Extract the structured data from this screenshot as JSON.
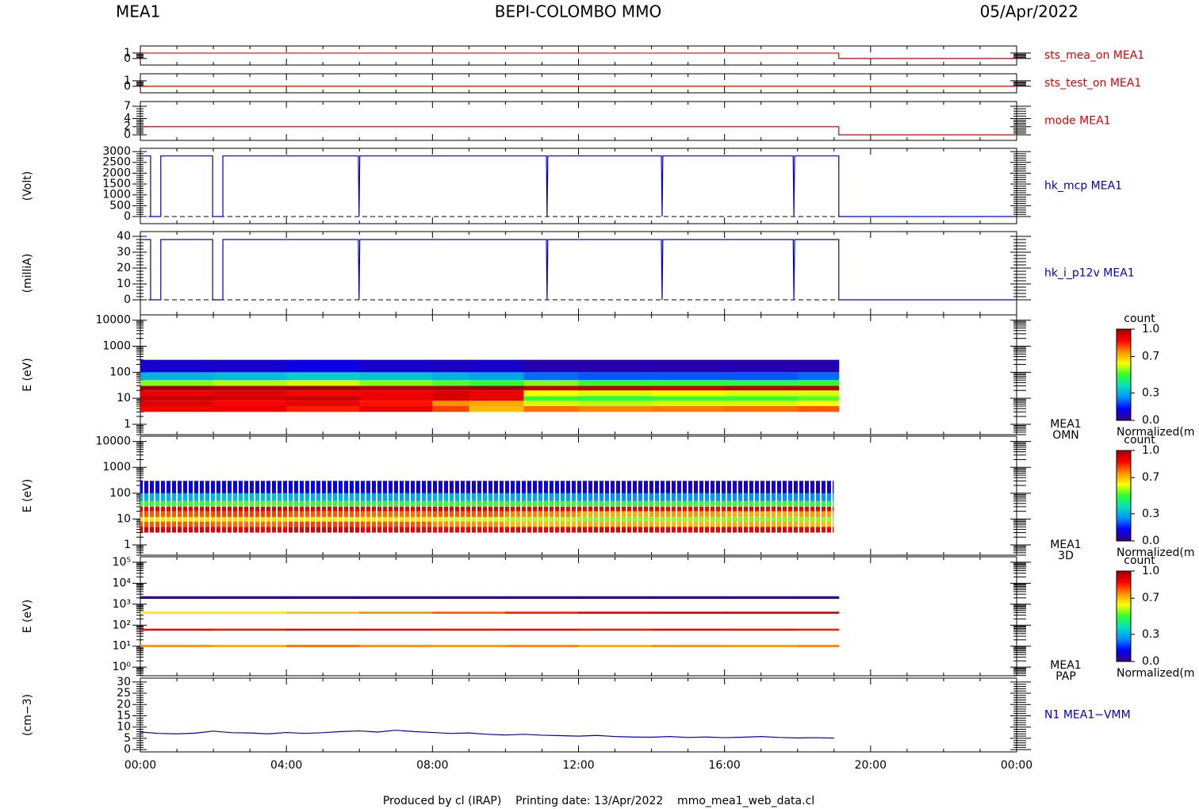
{
  "header": {
    "left": "MEA1",
    "title": "BEPI-COLOMBO MMO",
    "date": "05/Apr/2022"
  },
  "footer": "Produced by cl (IRAP)    Printing date: 13/Apr/2022    mmo_mea1_web_data.cl",
  "chart_data": [
    {
      "type": "line",
      "xlim": [
        0,
        24
      ],
      "ylim": [
        -1.2,
        2.3
      ],
      "yticks": [
        0,
        1
      ],
      "series": [
        {
          "name": "sts_mea_on MEA1",
          "color": "#e00000",
          "x": [
            0,
            19.13,
            19.13,
            24
          ],
          "values": [
            1,
            1,
            0,
            0
          ]
        }
      ]
    },
    {
      "type": "line",
      "xlim": [
        0,
        24
      ],
      "ylim": [
        -1.2,
        2.3
      ],
      "yticks": [
        0,
        1
      ],
      "series": [
        {
          "name": "sts_test_on MEA1",
          "color": "#e00000",
          "x": [
            0,
            24
          ],
          "values": [
            0,
            0
          ]
        }
      ]
    },
    {
      "type": "line",
      "xlim": [
        0,
        24
      ],
      "ylim": [
        -1.36,
        8.17
      ],
      "yticks": [
        0,
        2,
        4,
        7
      ],
      "series": [
        {
          "name": "mode MEA1",
          "color": "#e00000",
          "x": [
            0,
            19.13,
            19.13,
            24
          ],
          "values": [
            2,
            2,
            0,
            0
          ]
        }
      ]
    },
    {
      "type": "line",
      "ylabel": "(Volt)",
      "xlim": [
        0,
        24
      ],
      "ylim": [
        -330,
        3150
      ],
      "yticks": [
        0,
        500,
        1000,
        1500,
        2000,
        2500,
        3000
      ],
      "baseline": 0,
      "series": [
        {
          "name": "hk_mcp MEA1",
          "color": "#0000c8",
          "x": [
            0,
            0.28,
            0.28,
            0.56,
            0.56,
            1.98,
            1.98,
            2.26,
            2.26,
            5.97,
            5.99,
            6.01,
            11.12,
            11.14,
            11.16,
            14.27,
            14.29,
            14.31,
            17.88,
            17.9,
            17.92,
            19.13,
            19.13,
            24
          ],
          "values": [
            2800,
            2800,
            0,
            0,
            2800,
            2800,
            0,
            0,
            2800,
            2800,
            0,
            2800,
            2800,
            0,
            2800,
            2800,
            0,
            2800,
            2800,
            0,
            2800,
            2800,
            0,
            0
          ]
        }
      ]
    },
    {
      "type": "line",
      "ylabel": "(milliA)",
      "xlim": [
        0,
        24
      ],
      "ylim": [
        -9.5,
        43
      ],
      "yticks": [
        0,
        10,
        20,
        30,
        40
      ],
      "baseline": 0,
      "series": [
        {
          "name": "hk_i_p12v MEA1",
          "color": "#0000c8",
          "x": [
            0,
            0.28,
            0.28,
            0.56,
            0.56,
            1.98,
            1.98,
            2.26,
            2.26,
            5.97,
            5.99,
            6.01,
            11.12,
            11.14,
            11.16,
            14.27,
            14.29,
            14.31,
            17.88,
            17.9,
            17.92,
            19.13,
            19.13,
            24
          ],
          "values": [
            38,
            38,
            0,
            0,
            38,
            38,
            0,
            0,
            38,
            38,
            0,
            38,
            38,
            0,
            38,
            38,
            0,
            38,
            38,
            0,
            38,
            38,
            0,
            0
          ]
        }
      ]
    },
    {
      "type": "heatmap",
      "ylabel": "E (eV)",
      "instrument": "MEA1",
      "product": "OMN",
      "log_y": true,
      "xlim": [
        0,
        24
      ],
      "ylim": [
        0.4,
        16000
      ],
      "yticks": [
        1,
        10,
        100,
        1000,
        10000
      ],
      "x_edges": [
        0,
        2,
        4,
        6,
        8,
        9,
        10.5,
        12,
        14,
        16,
        18,
        19.13
      ],
      "y_edges": [
        3,
        5,
        8,
        12,
        20,
        30,
        50,
        100,
        300
      ],
      "z": [
        [
          0.88,
          0.9,
          0.85,
          0.9,
          0.82,
          0.7,
          0.78,
          0.76,
          0.77,
          0.78,
          0.8
        ],
        [
          0.92,
          0.88,
          0.9,
          0.86,
          0.75,
          0.72,
          0.6,
          0.58,
          0.6,
          0.6,
          0.62
        ],
        [
          0.95,
          0.93,
          0.95,
          0.9,
          0.92,
          0.9,
          0.5,
          0.48,
          0.5,
          0.5,
          0.52
        ],
        [
          0.9,
          0.92,
          0.88,
          0.9,
          0.93,
          0.9,
          0.62,
          0.6,
          0.62,
          0.6,
          0.6
        ],
        [
          1,
          0.98,
          1,
          0.97,
          0.98,
          1,
          0.95,
          0.96,
          0.95,
          0.96,
          0.96
        ],
        [
          0.55,
          0.58,
          0.6,
          0.55,
          0.52,
          0.5,
          0.55,
          0.5,
          0.5,
          0.48,
          0.5
        ],
        [
          0.3,
          0.32,
          0.35,
          0.33,
          0.3,
          0.28,
          0.22,
          0.2,
          0.2,
          0.2,
          0.22
        ],
        [
          0.08,
          0.08,
          0.1,
          0.08,
          0.07,
          0.08,
          0.05,
          0.05,
          0.05,
          0.05,
          0.05
        ]
      ],
      "colormap": [
        "#3c0078",
        "#0000ff",
        "#0090ff",
        "#00e0c0",
        "#30ff30",
        "#ffff00",
        "#ff9000",
        "#ff0000",
        "#a00000"
      ],
      "colorbar": {
        "title": "count",
        "subtitle": "Normalized(m",
        "lim": [
          0,
          1
        ],
        "ticks": [
          {
            "value": 0,
            "label": "0.0"
          },
          0.3,
          0.7,
          {
            "value": 1,
            "label": "1.0"
          }
        ]
      }
    },
    {
      "type": "heatmap",
      "ylabel": "E (eV)",
      "instrument": "MEA1",
      "product": "3D",
      "log_y": true,
      "striped": true,
      "xlim": [
        0,
        24
      ],
      "ylim": [
        0.4,
        16000
      ],
      "yticks": [
        1,
        10,
        100,
        1000,
        10000
      ],
      "x_edges": [
        0,
        2,
        4,
        6,
        8,
        10,
        12,
        14,
        16,
        18,
        18.98
      ],
      "y_edges": [
        3,
        5,
        8,
        12,
        20,
        30,
        50,
        100,
        300
      ],
      "z": [
        [
          0.92,
          0.9,
          0.93,
          0.9,
          0.88,
          0.9,
          0.92,
          0.9,
          0.91,
          0.9
        ],
        [
          0.8,
          0.78,
          0.82,
          0.8,
          0.75,
          0.7,
          0.72,
          0.7,
          0.72,
          0.7
        ],
        [
          0.65,
          0.66,
          0.64,
          0.65,
          0.6,
          0.58,
          0.55,
          0.56,
          0.55,
          0.56
        ],
        [
          0.8,
          0.82,
          0.8,
          0.78,
          0.8,
          0.76,
          0.72,
          0.74,
          0.72,
          0.74
        ],
        [
          0.9,
          0.92,
          0.9,
          0.9,
          0.92,
          0.9,
          0.9,
          0.88,
          0.9,
          0.9
        ],
        [
          0.5,
          0.52,
          0.5,
          0.48,
          0.5,
          0.5,
          0.48,
          0.5,
          0.5,
          0.48
        ],
        [
          0.3,
          0.32,
          0.3,
          0.28,
          0.3,
          0.28,
          0.25,
          0.26,
          0.25,
          0.25
        ],
        [
          0.1,
          0.1,
          0.12,
          0.1,
          0.08,
          0.1,
          0.08,
          0.08,
          0.08,
          0.08
        ]
      ],
      "colormap": [
        "#3c0078",
        "#0000ff",
        "#0090ff",
        "#00e0c0",
        "#30ff30",
        "#ffff00",
        "#ff9000",
        "#ff0000",
        "#a00000"
      ],
      "colorbar": {
        "title": "count",
        "subtitle": "Normalized(m",
        "lim": [
          0,
          1
        ],
        "ticks": [
          {
            "value": 0,
            "label": "0.0"
          },
          0.3,
          0.7,
          {
            "value": 1,
            "label": "1.0"
          }
        ]
      }
    },
    {
      "type": "heatmap",
      "ylabel": "E (eV)",
      "instrument": "MEA1",
      "product": "PAP",
      "log_y": true,
      "xlim": [
        0,
        24
      ],
      "ylim": [
        0.39,
        182000
      ],
      "yticks": [
        {
          "value": 1,
          "label": "10⁰"
        },
        {
          "value": 10,
          "label": "10¹"
        },
        {
          "value": 100,
          "label": "10²"
        },
        {
          "value": 1000,
          "label": "10³"
        },
        {
          "value": 10000,
          "label": "10⁴"
        },
        {
          "value": 100000,
          "label": "10⁵"
        }
      ],
      "x_edges": [
        0,
        2,
        4,
        6,
        8,
        10,
        12,
        14,
        16,
        18,
        19.13
      ],
      "y_edges": [
        9,
        11.5,
        55,
        68,
        350,
        440,
        1800,
        2400
      ],
      "z": [
        [
          0.75,
          0.72,
          0.78,
          0.75,
          0.74,
          0.76,
          0.72,
          0.75,
          0.74,
          0.76
        ],
        [
          null,
          null,
          null,
          null,
          null,
          null,
          null,
          null,
          null,
          null
        ],
        [
          0.88,
          0.86,
          0.9,
          0.88,
          0.87,
          0.88,
          0.86,
          0.88,
          0.87,
          0.85
        ],
        [
          null,
          null,
          null,
          null,
          null,
          null,
          null,
          null,
          null,
          null
        ],
        [
          0.65,
          0.65,
          0.7,
          0.75,
          0.8,
          0.85,
          0.9,
          0.92,
          0.93,
          0.93
        ],
        [
          null,
          null,
          null,
          null,
          null,
          null,
          null,
          null,
          null,
          null
        ],
        [
          0.02,
          0.02,
          0.02,
          0.02,
          0.02,
          0.02,
          0.02,
          0.02,
          0.02,
          0.02
        ]
      ],
      "colormap": [
        "#3c0078",
        "#0000ff",
        "#0090ff",
        "#00e0c0",
        "#30ff30",
        "#ffff00",
        "#ff9000",
        "#ff0000",
        "#a00000"
      ],
      "colorbar": {
        "title": "count",
        "subtitle": "Normalized(m",
        "lim": [
          0,
          1
        ],
        "ticks": [
          {
            "value": 0,
            "label": "0.0"
          },
          0.3,
          0.7,
          {
            "value": 1,
            "label": "1.0"
          }
        ]
      }
    },
    {
      "type": "line",
      "ylabel": "(cm−3)",
      "xlim": [
        0,
        24
      ],
      "ylim": [
        -1,
        31.7
      ],
      "yticks": [
        0,
        5,
        10,
        15,
        20,
        25,
        30
      ],
      "xticks": [
        {
          "value": 0,
          "label": "00:00"
        },
        {
          "value": 4,
          "label": "04:00"
        },
        {
          "value": 8,
          "label": "08:00"
        },
        {
          "value": 12,
          "label": "12:00"
        },
        {
          "value": 16,
          "label": "16:00"
        },
        {
          "value": 20,
          "label": "20:00"
        },
        {
          "value": 24,
          "label": "00:00"
        }
      ],
      "series": [
        {
          "name": "N1 MEA1−VMM",
          "color": "#0000c8",
          "x": [
            0,
            0.5,
            1,
            1.5,
            2,
            2.5,
            3,
            3.5,
            4,
            4.5,
            5,
            5.5,
            6,
            6.5,
            7,
            7.5,
            8,
            8.5,
            9,
            9.5,
            10,
            10.5,
            11,
            11.5,
            12,
            12.5,
            13,
            13.5,
            14,
            14.5,
            15,
            15.5,
            16,
            16.5,
            17,
            17.5,
            18,
            18.5,
            19
          ],
          "values": [
            7.8,
            7.2,
            7.0,
            7.3,
            8.2,
            7.5,
            7.4,
            7.0,
            7.6,
            7.2,
            7.5,
            8.0,
            8.3,
            7.8,
            8.6,
            8.0,
            7.6,
            7.2,
            7.4,
            6.8,
            6.5,
            6.8,
            6.4,
            6.2,
            6.0,
            6.3,
            5.8,
            5.6,
            5.5,
            5.8,
            5.4,
            5.6,
            5.3,
            5.5,
            5.8,
            5.4,
            5.2,
            5.3,
            5.1
          ]
        }
      ]
    }
  ]
}
